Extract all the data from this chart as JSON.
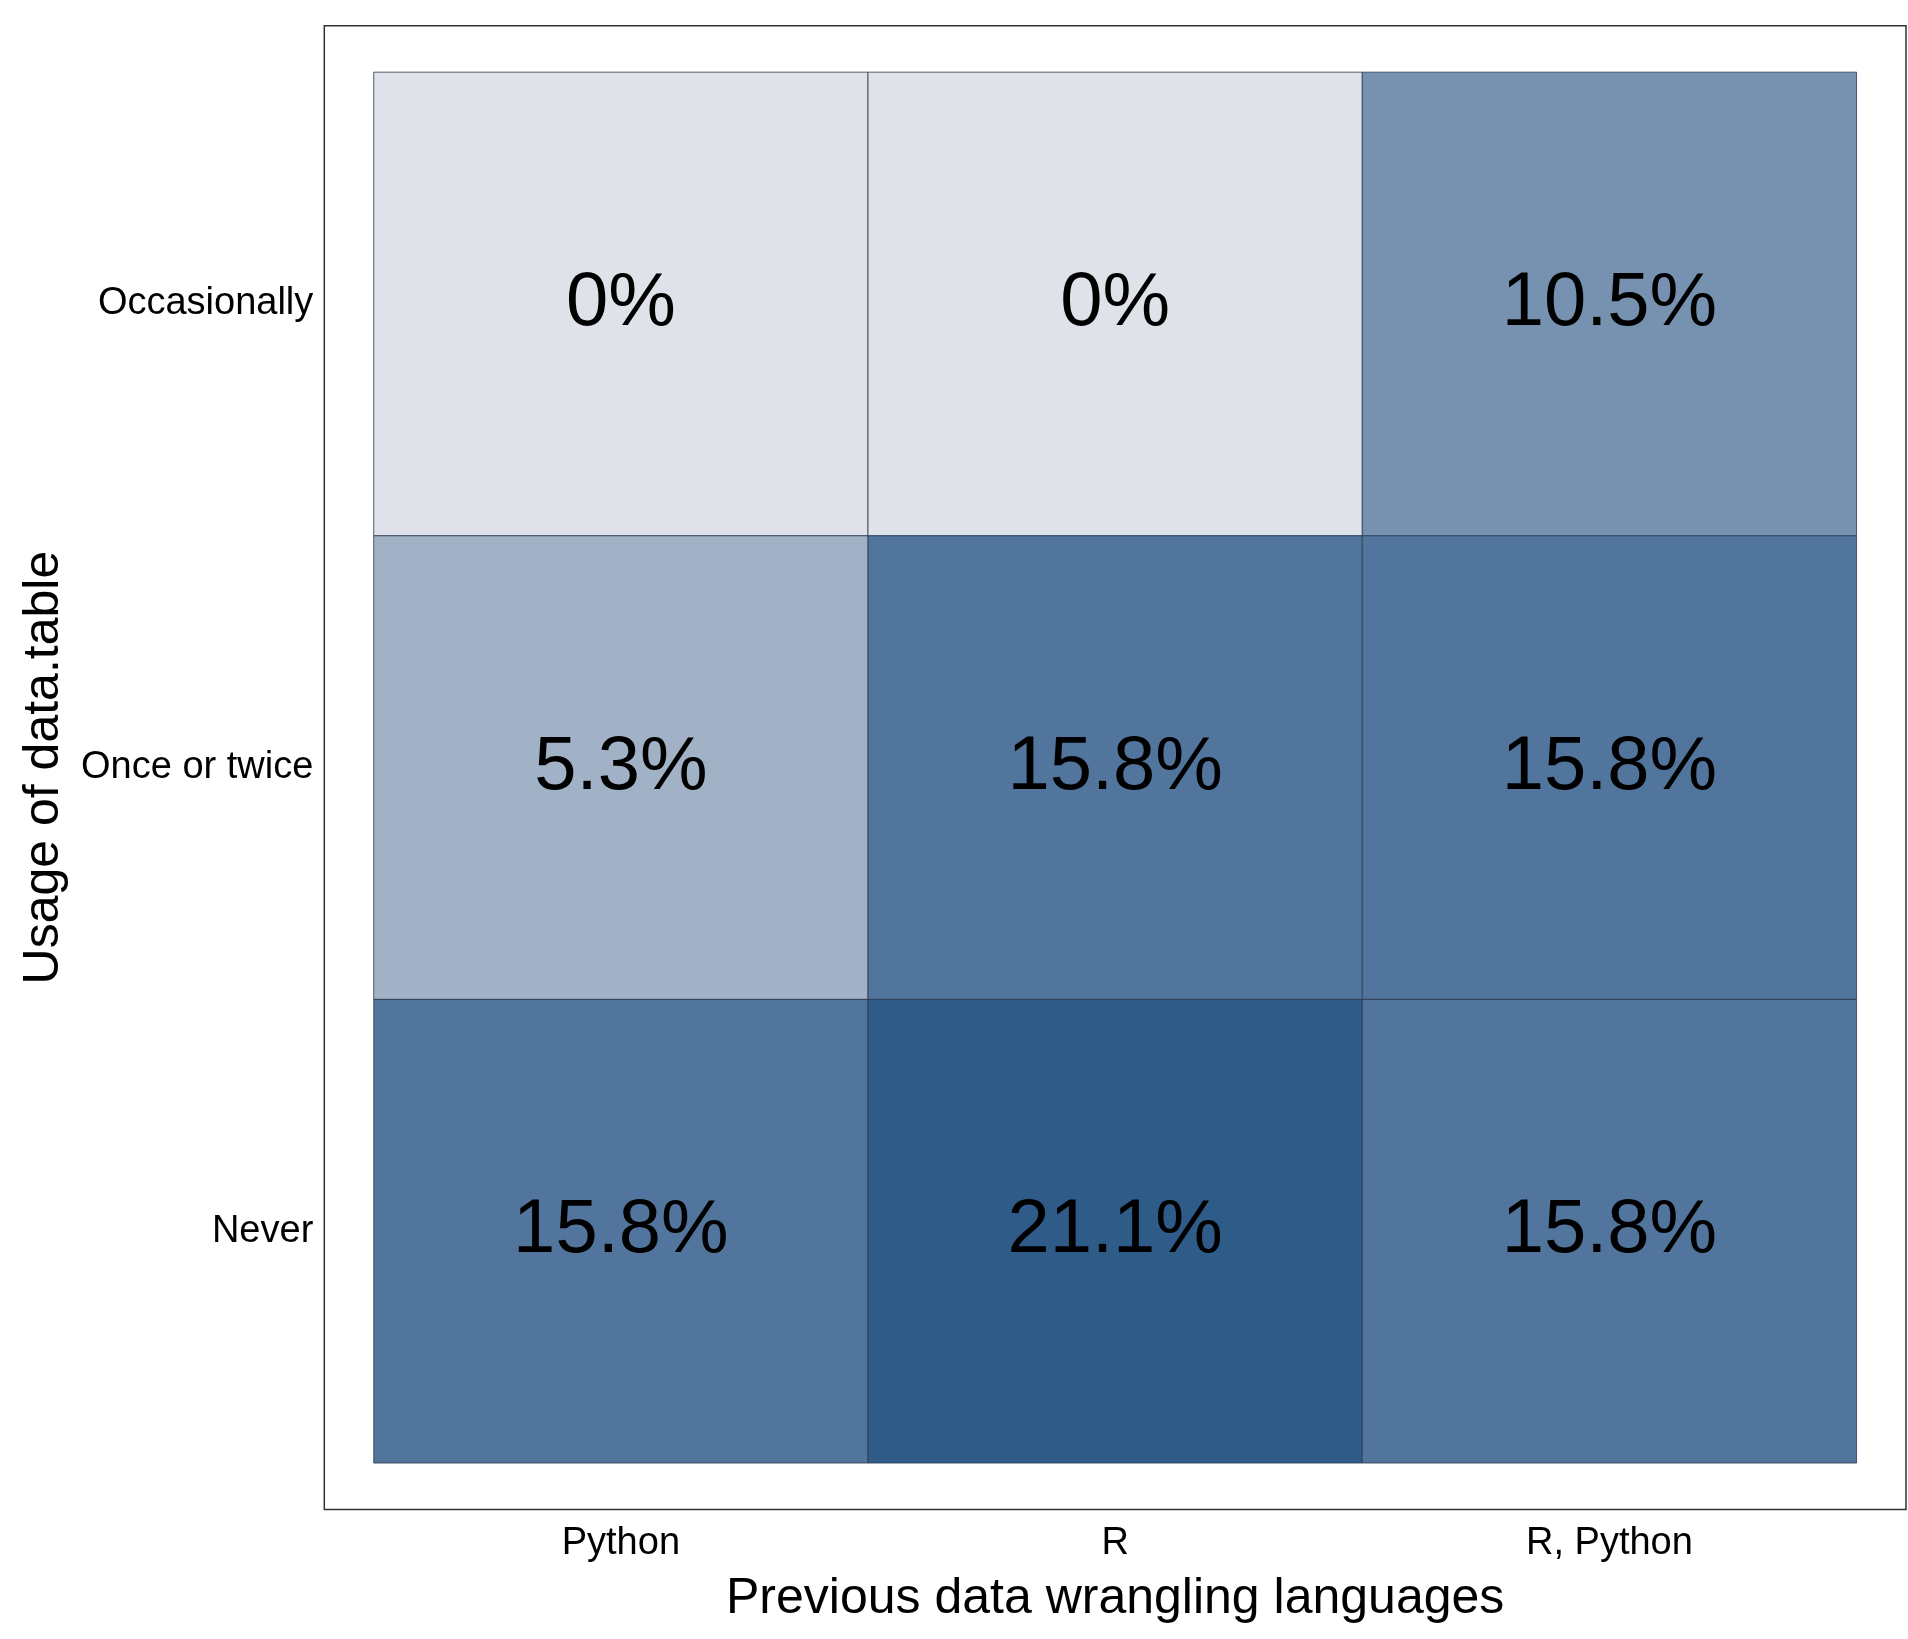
{
  "chart_data": {
    "type": "heatmap",
    "xlabel": "Previous data wrangling languages",
    "ylabel": "Usage of data.table",
    "categories": [
      "Python",
      "R",
      "R, Python"
    ],
    "y_categories": [
      "Occasionally",
      "Once or twice",
      "Never"
    ],
    "cells": [
      [
        0,
        0,
        10.5
      ],
      [
        5.3,
        15.8,
        15.8
      ],
      [
        15.8,
        21.1,
        15.8
      ]
    ],
    "cell_labels": [
      [
        "0%",
        "0%",
        "10.5%"
      ],
      [
        "5.3%",
        "15.8%",
        "15.8%"
      ],
      [
        "15.8%",
        "21.1%",
        "15.8%"
      ]
    ],
    "grid": false,
    "legend": false
  }
}
